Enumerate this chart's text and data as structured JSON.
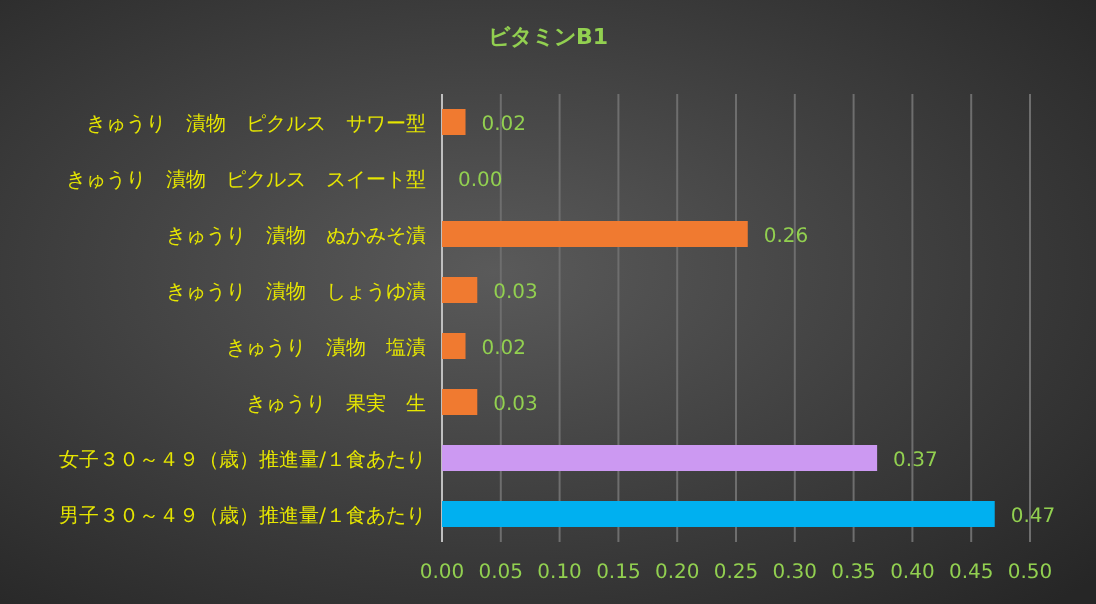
{
  "chart_data": {
    "type": "bar",
    "orientation": "horizontal",
    "title": "ビタミンB1",
    "categories": [
      "きゅうり　漬物　ピクルス　サワー型",
      "きゅうり　漬物　ピクルス　スイート型",
      "きゅうり　漬物　ぬかみそ漬",
      "きゅうり　漬物　しょうゆ漬",
      "きゅうり　漬物　塩漬",
      "きゅうり　果実　生",
      "女子３０～４９（歳）推進量/１食あたり",
      "男子３０～４９（歳）推進量/１食あたり"
    ],
    "values": [
      0.02,
      0.0,
      0.26,
      0.03,
      0.02,
      0.03,
      0.37,
      0.47
    ],
    "colors": [
      "#f07a30",
      "#f07a30",
      "#f07a30",
      "#f07a30",
      "#f07a30",
      "#f07a30",
      "#cc99f2",
      "#00b0f0"
    ],
    "xlim": [
      0,
      0.5
    ],
    "xticks": [
      {
        "value": 0,
        "label": "0.00"
      },
      {
        "value": 0.05,
        "label": "0.05"
      },
      {
        "value": 0.1,
        "label": "0.10"
      },
      {
        "value": 0.15,
        "label": "0.15"
      },
      {
        "value": 0.2,
        "label": "0.20"
      },
      {
        "value": 0.25,
        "label": "0.25"
      },
      {
        "value": 0.3,
        "label": "0.30"
      },
      {
        "value": 0.35,
        "label": "0.35"
      },
      {
        "value": 0.4,
        "label": "0.40"
      },
      {
        "value": 0.45,
        "label": "0.45"
      },
      {
        "value": 0.5,
        "label": "0.50"
      }
    ],
    "value_labels": [
      "0.02",
      "0.00",
      "0.26",
      "0.03",
      "0.02",
      "0.03",
      "0.37",
      "0.47"
    ],
    "grid": "x"
  }
}
